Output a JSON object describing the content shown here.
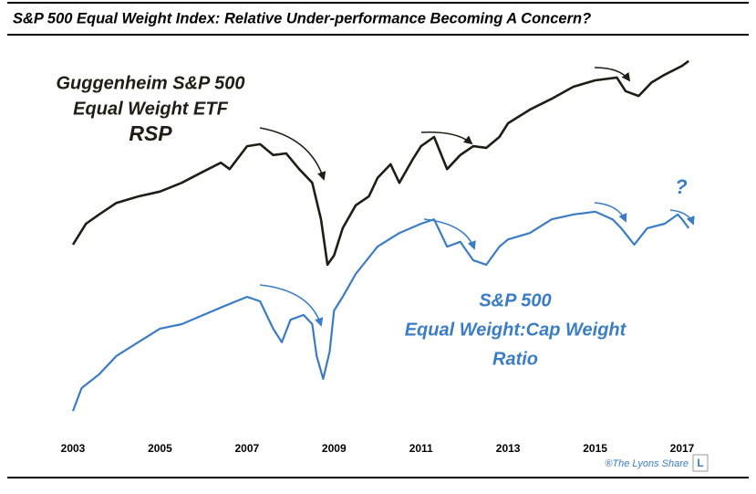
{
  "chart_data": {
    "type": "line",
    "title": "S&P 500 Equal Weight Index: Relative Under-performance Becoming A Concern?",
    "xlim": [
      2003,
      2017.3
    ],
    "xticks": [
      2003,
      2005,
      2007,
      2009,
      2011,
      2013,
      2015,
      2017
    ],
    "ylim": [
      0,
      100
    ],
    "series": [
      {
        "label": [
          "Guggenheim S&P 500",
          "Equal Weight ETF",
          "RSP"
        ],
        "color": "#1e1e14",
        "x": [
          2003.0,
          2003.3,
          2003.6,
          2004.0,
          2004.5,
          2005.0,
          2005.5,
          2006.0,
          2006.4,
          2006.6,
          2007.0,
          2007.3,
          2007.6,
          2007.9,
          2008.2,
          2008.5,
          2008.7,
          2008.85,
          2009.0,
          2009.2,
          2009.5,
          2009.8,
          2010.0,
          2010.3,
          2010.5,
          2010.8,
          2011.0,
          2011.3,
          2011.6,
          2011.9,
          2012.2,
          2012.5,
          2012.8,
          2013.0,
          2013.5,
          2014.0,
          2014.5,
          2015.0,
          2015.5,
          2015.7,
          2016.0,
          2016.3,
          2016.6,
          2017.0,
          2017.15
        ],
        "values": [
          48.2,
          53.4,
          55.7,
          58.6,
          60.2,
          61.4,
          63.6,
          66.4,
          68.6,
          67.0,
          72.7,
          73.2,
          70.5,
          70.9,
          67.0,
          63.6,
          54.5,
          43.2,
          45.5,
          52.3,
          58.0,
          60.2,
          64.8,
          68.2,
          63.6,
          69.3,
          72.7,
          75.0,
          67.0,
          70.5,
          72.7,
          72.3,
          75.0,
          78.4,
          81.8,
          84.5,
          87.5,
          89.1,
          89.8,
          86.4,
          85.2,
          88.6,
          90.5,
          92.7,
          93.9
        ]
      },
      {
        "label": [
          "S&P 500",
          "Equal Weight:Cap Weight",
          "Ratio"
        ],
        "color": "#3a7dc6",
        "x": [
          2003.0,
          2003.2,
          2003.6,
          2004.0,
          2004.5,
          2005.0,
          2005.5,
          2006.0,
          2006.5,
          2007.0,
          2007.3,
          2007.6,
          2007.8,
          2008.0,
          2008.3,
          2008.5,
          2008.6,
          2008.75,
          2008.9,
          2009.0,
          2009.2,
          2009.5,
          2010.0,
          2010.5,
          2011.0,
          2011.3,
          2011.6,
          2011.9,
          2012.2,
          2012.5,
          2012.8,
          2013.0,
          2013.5,
          2014.0,
          2014.5,
          2015.0,
          2015.4,
          2015.6,
          2015.9,
          2016.2,
          2016.6,
          2016.9,
          2017.0,
          2017.15
        ],
        "values": [
          6.8,
          12.5,
          15.9,
          20.5,
          23.9,
          27.3,
          28.4,
          30.7,
          33.0,
          35.2,
          34.1,
          27.3,
          23.9,
          29.5,
          30.7,
          28.4,
          20.5,
          14.8,
          21.6,
          31.8,
          35.2,
          40.9,
          47.7,
          51.1,
          53.4,
          54.5,
          47.7,
          48.9,
          44.3,
          43.2,
          47.7,
          49.5,
          51.1,
          54.5,
          55.7,
          56.4,
          54.5,
          52.3,
          48.2,
          52.3,
          53.4,
          55.7,
          54.5,
          52.3
        ]
      }
    ],
    "annotations": [
      "?",
      "®The Lyons Share",
      "L"
    ]
  }
}
